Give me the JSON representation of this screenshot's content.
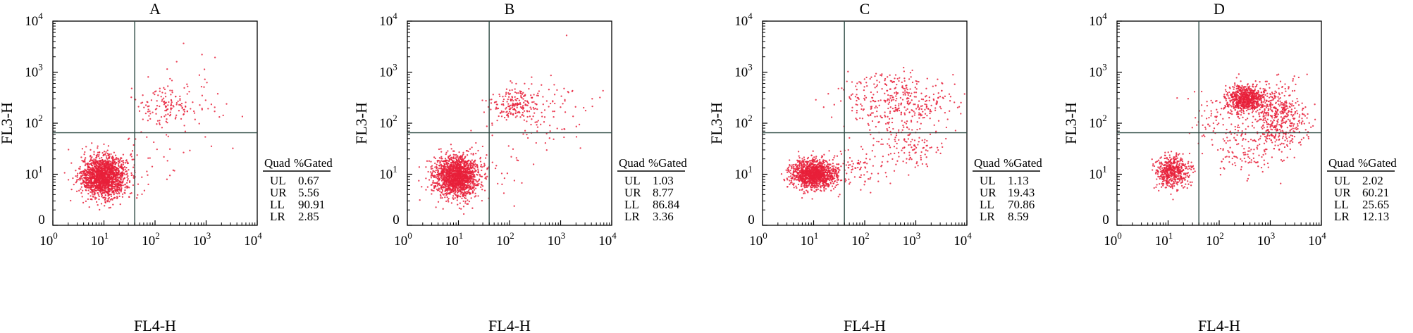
{
  "chart_data": [
    {
      "type": "scatter",
      "title": "A",
      "xlabel": "FL4-H",
      "ylabel": "FL3-H",
      "xscale": "log",
      "yscale": "log",
      "xlim": [
        1,
        10000
      ],
      "ylim": [
        1,
        10000
      ],
      "xticks": [
        {
          "base": "10",
          "exp": "0"
        },
        {
          "base": "10",
          "exp": "1"
        },
        {
          "base": "10",
          "exp": "2"
        },
        {
          "base": "10",
          "exp": "3"
        },
        {
          "base": "10",
          "exp": "4"
        }
      ],
      "yticks": [
        {
          "base": "0",
          "exp": ""
        },
        {
          "base": "10",
          "exp": "1"
        },
        {
          "base": "10",
          "exp": "2"
        },
        {
          "base": "10",
          "exp": "3"
        },
        {
          "base": "10",
          "exp": "4"
        }
      ],
      "gate": {
        "x": 40,
        "y": 65
      },
      "dot_color": "#e8203a",
      "clusters": [
        {
          "cx": 10,
          "cy": 9,
          "sx": 0.22,
          "sy": 0.2,
          "n": 1700
        },
        {
          "cx": 160,
          "cy": 230,
          "sx": 0.28,
          "sy": 0.18,
          "n": 110
        },
        {
          "cx": 400,
          "cy": 250,
          "sx": 0.55,
          "sy": 0.4,
          "n": 60
        },
        {
          "cx": 60,
          "cy": 20,
          "sx": 0.35,
          "sy": 0.35,
          "n": 40
        }
      ],
      "table": {
        "headers": [
          "Quad",
          "%Gated"
        ],
        "rows": [
          [
            "UL",
            "0.67"
          ],
          [
            "UR",
            "5.56"
          ],
          [
            "LL",
            "90.91"
          ],
          [
            "LR",
            "2.85"
          ]
        ]
      }
    },
    {
      "type": "scatter",
      "title": "B",
      "xlabel": "FL4-H",
      "ylabel": "FL3-H",
      "xscale": "log",
      "yscale": "log",
      "xlim": [
        1,
        10000
      ],
      "ylim": [
        1,
        10000
      ],
      "xticks": [
        {
          "base": "10",
          "exp": "0"
        },
        {
          "base": "10",
          "exp": "1"
        },
        {
          "base": "10",
          "exp": "2"
        },
        {
          "base": "10",
          "exp": "3"
        },
        {
          "base": "10",
          "exp": "4"
        }
      ],
      "yticks": [
        {
          "base": "0",
          "exp": ""
        },
        {
          "base": "10",
          "exp": "1"
        },
        {
          "base": "10",
          "exp": "2"
        },
        {
          "base": "10",
          "exp": "3"
        },
        {
          "base": "10",
          "exp": "4"
        }
      ],
      "gate": {
        "x": 40,
        "y": 65
      },
      "dot_color": "#e8203a",
      "clusters": [
        {
          "cx": 9,
          "cy": 9,
          "sx": 0.22,
          "sy": 0.2,
          "n": 1600
        },
        {
          "cx": 120,
          "cy": 240,
          "sx": 0.22,
          "sy": 0.16,
          "n": 180
        },
        {
          "cx": 600,
          "cy": 200,
          "sx": 0.45,
          "sy": 0.35,
          "n": 90
        },
        {
          "cx": 50,
          "cy": 20,
          "sx": 0.35,
          "sy": 0.35,
          "n": 40
        }
      ],
      "table": {
        "headers": [
          "Quad",
          "%Gated"
        ],
        "rows": [
          [
            "UL",
            "1.03"
          ],
          [
            "UR",
            "8.77"
          ],
          [
            "LL",
            "86.84"
          ],
          [
            "LR",
            "3.36"
          ]
        ]
      }
    },
    {
      "type": "scatter",
      "title": "C",
      "xlabel": "FL4-H",
      "ylabel": "FL3-H",
      "xscale": "log",
      "yscale": "log",
      "xlim": [
        1,
        10000
      ],
      "ylim": [
        1,
        10000
      ],
      "xticks": [
        {
          "base": "10",
          "exp": "0"
        },
        {
          "base": "10",
          "exp": "1"
        },
        {
          "base": "10",
          "exp": "2"
        },
        {
          "base": "10",
          "exp": "3"
        },
        {
          "base": "10",
          "exp": "4"
        }
      ],
      "yticks": [
        {
          "base": "0",
          "exp": ""
        },
        {
          "base": "10",
          "exp": "1"
        },
        {
          "base": "10",
          "exp": "2"
        },
        {
          "base": "10",
          "exp": "3"
        },
        {
          "base": "10",
          "exp": "4"
        }
      ],
      "gate": {
        "x": 40,
        "y": 65
      },
      "dot_color": "#e8203a",
      "clusters": [
        {
          "cx": 10,
          "cy": 10,
          "sx": 0.22,
          "sy": 0.14,
          "n": 1250
        },
        {
          "cx": 500,
          "cy": 250,
          "sx": 0.55,
          "sy": 0.3,
          "n": 380
        },
        {
          "cx": 700,
          "cy": 35,
          "sx": 0.3,
          "sy": 0.25,
          "n": 120
        },
        {
          "cx": 70,
          "cy": 14,
          "sx": 0.3,
          "sy": 0.2,
          "n": 90
        }
      ],
      "table": {
        "headers": [
          "Quad",
          "%Gated"
        ],
        "rows": [
          [
            "UL",
            "1.13"
          ],
          [
            "UR",
            "19.43"
          ],
          [
            "LL",
            "70.86"
          ],
          [
            "LR",
            "8.59"
          ]
        ]
      }
    },
    {
      "type": "scatter",
      "title": "D",
      "xlabel": "FL4-H",
      "ylabel": "FL3-H",
      "xscale": "log",
      "yscale": "log",
      "xlim": [
        1,
        10000
      ],
      "ylim": [
        1,
        10000
      ],
      "xticks": [
        {
          "base": "10",
          "exp": "0"
        },
        {
          "base": "10",
          "exp": "1"
        },
        {
          "base": "10",
          "exp": "2"
        },
        {
          "base": "10",
          "exp": "3"
        },
        {
          "base": "10",
          "exp": "4"
        }
      ],
      "yticks": [
        {
          "base": "0",
          "exp": ""
        },
        {
          "base": "10",
          "exp": "1"
        },
        {
          "base": "10",
          "exp": "2"
        },
        {
          "base": "10",
          "exp": "3"
        },
        {
          "base": "10",
          "exp": "4"
        }
      ],
      "gate": {
        "x": 40,
        "y": 65
      },
      "dot_color": "#e8203a",
      "clusters": [
        {
          "cx": 12,
          "cy": 11,
          "sx": 0.16,
          "sy": 0.16,
          "n": 500
        },
        {
          "cx": 320,
          "cy": 300,
          "sx": 0.18,
          "sy": 0.13,
          "n": 700
        },
        {
          "cx": 1500,
          "cy": 130,
          "sx": 0.28,
          "sy": 0.32,
          "n": 500
        },
        {
          "cx": 300,
          "cy": 25,
          "sx": 0.25,
          "sy": 0.25,
          "n": 90
        },
        {
          "cx": 120,
          "cy": 120,
          "sx": 0.35,
          "sy": 0.3,
          "n": 110
        }
      ],
      "table": {
        "headers": [
          "Quad",
          "%Gated"
        ],
        "rows": [
          [
            "UL",
            "2.02"
          ],
          [
            "UR",
            "60.21"
          ],
          [
            "LL",
            "25.65"
          ],
          [
            "LR",
            "12.13"
          ]
        ]
      }
    }
  ]
}
